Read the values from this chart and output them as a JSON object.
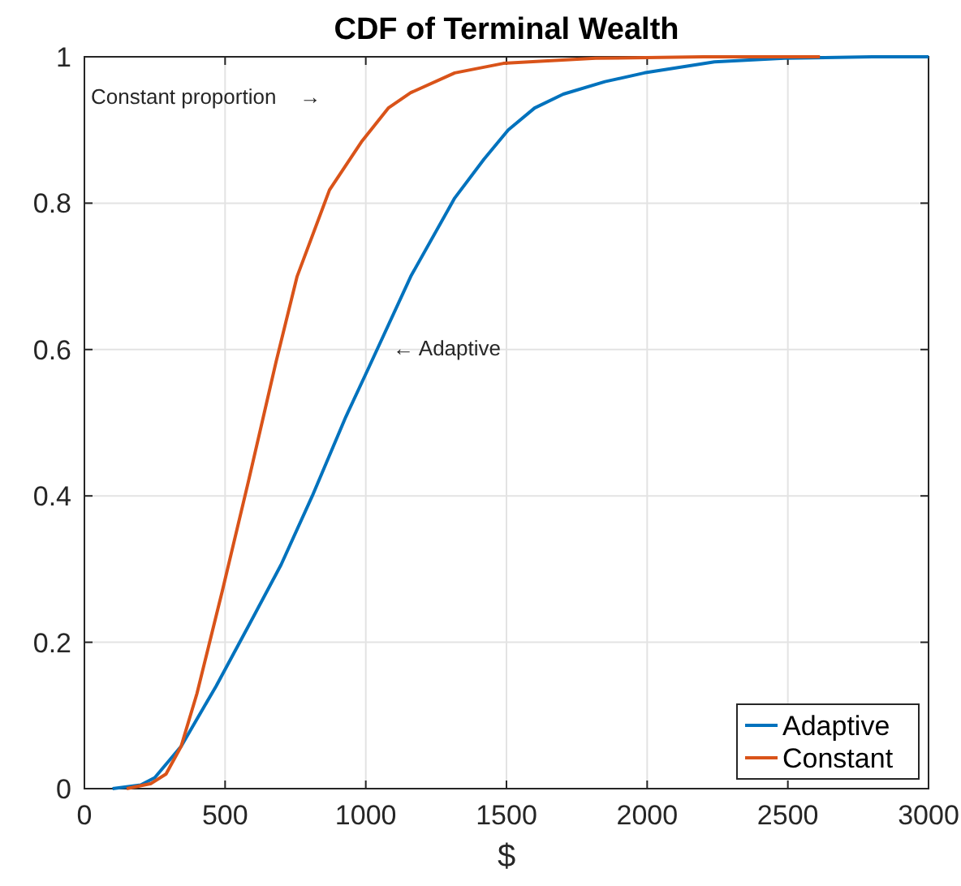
{
  "chart_data": {
    "type": "line",
    "title": "CDF of Terminal Wealth",
    "xlabel": "$",
    "xlim": [
      0,
      3000
    ],
    "xticks": [
      0,
      500,
      1000,
      1500,
      2000,
      2500,
      3000
    ],
    "ylim": [
      0,
      1
    ],
    "yticks": [
      0,
      0.2,
      0.4,
      0.6,
      0.8,
      1
    ],
    "grid": true,
    "legend": "bottom right",
    "line_style": "solid",
    "marker": "none",
    "series": [
      {
        "name": "Adaptive",
        "color": "#0072bd",
        "x": [
          100,
          200,
          250,
          344,
          468,
          580,
          699,
          810,
          929,
          1009,
          1160,
          1316,
          1420,
          1506,
          1600,
          1702,
          1850,
          1990,
          2239,
          2487,
          2800,
          3000
        ],
        "values": [
          0,
          0.005,
          0.015,
          0.058,
          0.14,
          0.22,
          0.306,
          0.4,
          0.508,
          0.574,
          0.7,
          0.807,
          0.86,
          0.9,
          0.93,
          0.949,
          0.966,
          0.978,
          0.993,
          0.998,
          1,
          1
        ]
      },
      {
        "name": "Constant",
        "color": "#d95319",
        "x": [
          150,
          237,
          290,
          344,
          400,
          490,
          583,
          681,
          756,
          871,
          987,
          1080,
          1160,
          1316,
          1489,
          1817,
          2200,
          2614
        ],
        "values": [
          0,
          0.007,
          0.02,
          0.058,
          0.13,
          0.27,
          0.42,
          0.583,
          0.7,
          0.818,
          0.885,
          0.93,
          0.951,
          0.978,
          0.991,
          0.998,
          1,
          1
        ]
      }
    ],
    "annotations": [
      "Constant proportion    →",
      "← Adaptive"
    ]
  }
}
